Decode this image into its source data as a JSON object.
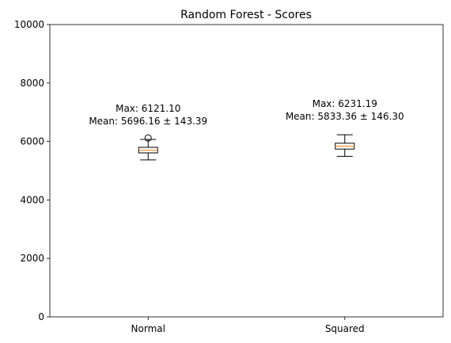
{
  "chart_data": {
    "type": "box",
    "title": "Random Forest - Scores",
    "xlabel": "",
    "ylabel": "",
    "ylim": [
      0,
      10000
    ],
    "yticks": [
      0,
      2000,
      4000,
      6000,
      8000,
      10000
    ],
    "categories": [
      "Normal",
      "Squared"
    ],
    "boxes": [
      {
        "category": "Normal",
        "whisker_low": 5370,
        "q1": 5610,
        "median": 5700,
        "q3": 5800,
        "whisker_high": 6070,
        "outliers": [
          6121.1
        ],
        "annotation_max": "Max: 6121.10",
        "annotation_mean": "Mean: 5696.16 ± 143.39"
      },
      {
        "category": "Squared",
        "whisker_low": 5490,
        "q1": 5740,
        "median": 5840,
        "q3": 5940,
        "whisker_high": 6231.19,
        "outliers": [],
        "annotation_max": "Max: 6231.19",
        "annotation_mean": "Mean: 5833.36 ± 146.30"
      }
    ],
    "colors": {
      "median": "#ff7f0e",
      "box": "#000000",
      "background": "#ffffff"
    },
    "grid": false,
    "legend": "none"
  }
}
